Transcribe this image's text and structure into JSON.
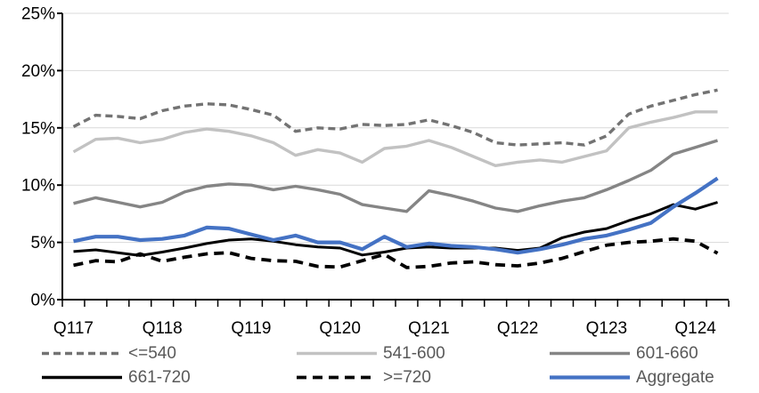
{
  "chart_data": {
    "type": "line",
    "x_axis": {
      "tick_labels": [
        "Q117",
        "Q118",
        "Q119",
        "Q120",
        "Q121",
        "Q122",
        "Q123",
        "Q124"
      ],
      "label_every_n_points": 4,
      "n_points": 30
    },
    "y_axis": {
      "min": 0,
      "max": 25,
      "step": 5,
      "tick_labels": [
        "0%",
        "5%",
        "10%",
        "15%",
        "20%",
        "25%"
      ],
      "unit": "%"
    },
    "grid": true,
    "legend_position": "bottom",
    "series": [
      {
        "name": "<=540",
        "color": "#737373",
        "style": "dashed",
        "dash": "8 5",
        "width": 3.4,
        "values": [
          15.1,
          16.1,
          16.0,
          15.8,
          16.5,
          16.9,
          17.1,
          17.0,
          16.6,
          16.1,
          14.7,
          15.0,
          14.9,
          15.3,
          15.2,
          15.3,
          15.7,
          15.2,
          14.6,
          13.7,
          13.5,
          13.6,
          13.7,
          13.5,
          14.3,
          16.2,
          16.9,
          17.4,
          17.9,
          18.3
        ]
      },
      {
        "name": "541-600",
        "color": "#C2C2C2",
        "style": "solid",
        "dash": "",
        "width": 3.4,
        "values": [
          12.9,
          14.0,
          14.1,
          13.7,
          14.0,
          14.6,
          14.9,
          14.7,
          14.3,
          13.7,
          12.6,
          13.1,
          12.8,
          12.0,
          13.2,
          13.4,
          13.9,
          13.3,
          12.5,
          11.7,
          12.0,
          12.2,
          12.0,
          12.5,
          13.0,
          15.0,
          15.5,
          15.9,
          16.4,
          16.4
        ]
      },
      {
        "name": "601-660",
        "color": "#858585",
        "style": "solid",
        "dash": "",
        "width": 3.4,
        "values": [
          8.4,
          8.9,
          8.5,
          8.1,
          8.5,
          9.4,
          9.9,
          10.1,
          10.0,
          9.6,
          9.9,
          9.6,
          9.2,
          8.3,
          8.0,
          7.7,
          9.5,
          9.1,
          8.6,
          8.0,
          7.7,
          8.2,
          8.6,
          8.9,
          9.6,
          10.4,
          11.3,
          12.7,
          13.3,
          13.9
        ]
      },
      {
        "name": "661-720",
        "color": "#000000",
        "style": "solid",
        "dash": "",
        "width": 3.0,
        "values": [
          4.2,
          4.35,
          4.1,
          3.85,
          4.15,
          4.5,
          4.9,
          5.2,
          5.3,
          5.1,
          4.8,
          4.6,
          4.5,
          3.9,
          4.15,
          4.5,
          4.6,
          4.5,
          4.5,
          4.5,
          4.3,
          4.5,
          5.4,
          5.9,
          6.2,
          6.9,
          7.5,
          8.3,
          7.9,
          8.5
        ]
      },
      {
        "name": ">=720",
        "color": "#000000",
        "style": "dashed",
        "dash": "11 7",
        "width": 3.8,
        "values": [
          3.0,
          3.4,
          3.3,
          4.0,
          3.35,
          3.7,
          4.0,
          4.1,
          3.6,
          3.4,
          3.35,
          2.9,
          2.85,
          3.4,
          3.95,
          2.8,
          2.9,
          3.2,
          3.3,
          3.05,
          2.95,
          3.2,
          3.6,
          4.2,
          4.75,
          5.0,
          5.1,
          5.3,
          5.1,
          4.05
        ]
      },
      {
        "name": "Aggregate",
        "color": "#4472C4",
        "style": "solid",
        "dash": "",
        "width": 4.2,
        "values": [
          5.1,
          5.5,
          5.5,
          5.2,
          5.3,
          5.6,
          6.3,
          6.2,
          5.7,
          5.2,
          5.6,
          5.0,
          5.0,
          4.4,
          5.5,
          4.6,
          4.9,
          4.7,
          4.6,
          4.4,
          4.1,
          4.4,
          4.8,
          5.3,
          5.6,
          6.1,
          6.7,
          8.1,
          9.3,
          10.6
        ]
      }
    ]
  },
  "colors": {
    "gridline": "#D9D9D9",
    "axis": "#000000",
    "axis_label": "#000000",
    "legend_label": "#595959",
    "background": "#FFFFFF"
  }
}
